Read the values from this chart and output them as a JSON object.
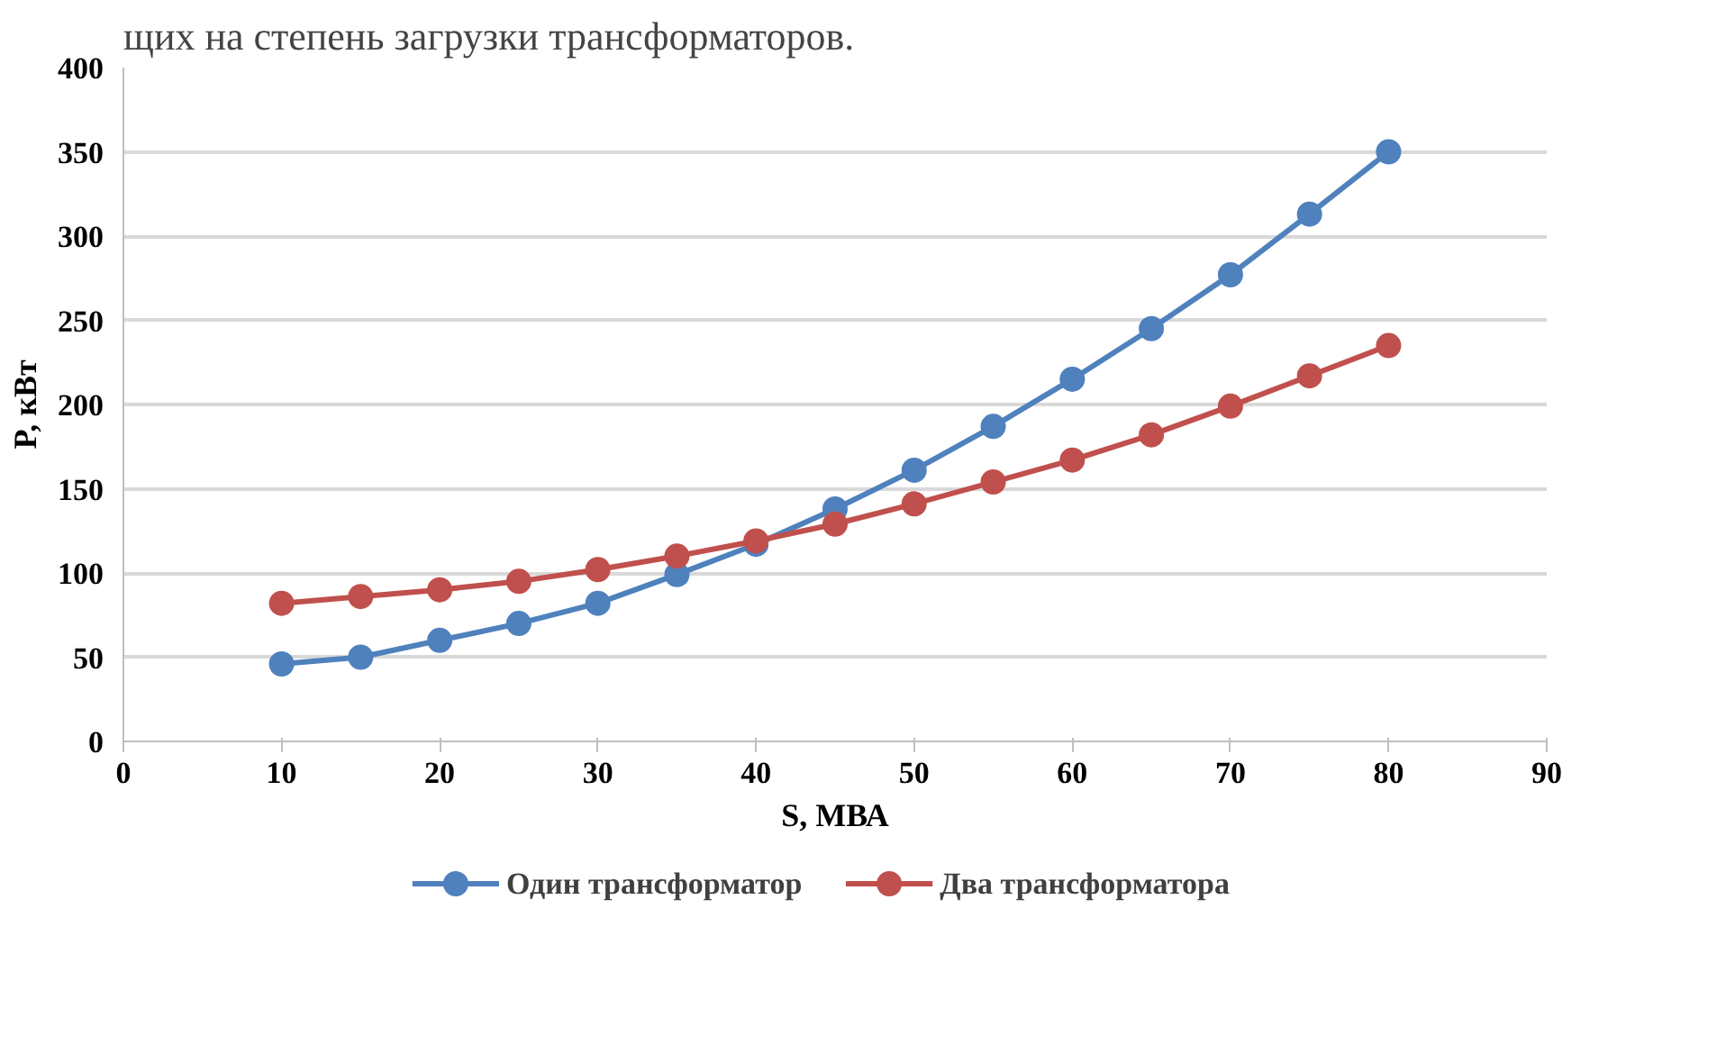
{
  "chart_data": {
    "type": "line",
    "annotations": [
      "щих на степень загрузки трансформаторов."
    ],
    "xlabel": "S, МВА",
    "ylabel": "P, кВт",
    "x": [
      10,
      15,
      20,
      25,
      30,
      35,
      40,
      45,
      50,
      55,
      60,
      65,
      70,
      75,
      80
    ],
    "series": [
      {
        "name": "Один трансформатор",
        "color": "#4f81bd",
        "values": [
          46,
          50,
          60,
          70,
          82,
          99,
          117,
          138,
          161,
          187,
          215,
          245,
          277,
          313,
          350
        ]
      },
      {
        "name": "Два трансформатора",
        "color": "#c0504d",
        "values": [
          82,
          86,
          90,
          95,
          102,
          110,
          119,
          129,
          141,
          154,
          167,
          182,
          199,
          217,
          235
        ]
      }
    ],
    "xlim": [
      0,
      90
    ],
    "xticks": [
      0,
      10,
      20,
      30,
      40,
      50,
      60,
      70,
      80,
      90
    ],
    "ylim": [
      0,
      400
    ],
    "yticks": [
      0,
      50,
      100,
      150,
      200,
      250,
      300,
      350,
      400
    ],
    "grid": "y",
    "legend": "bottom",
    "marker": "circle",
    "line_style": "solid"
  }
}
